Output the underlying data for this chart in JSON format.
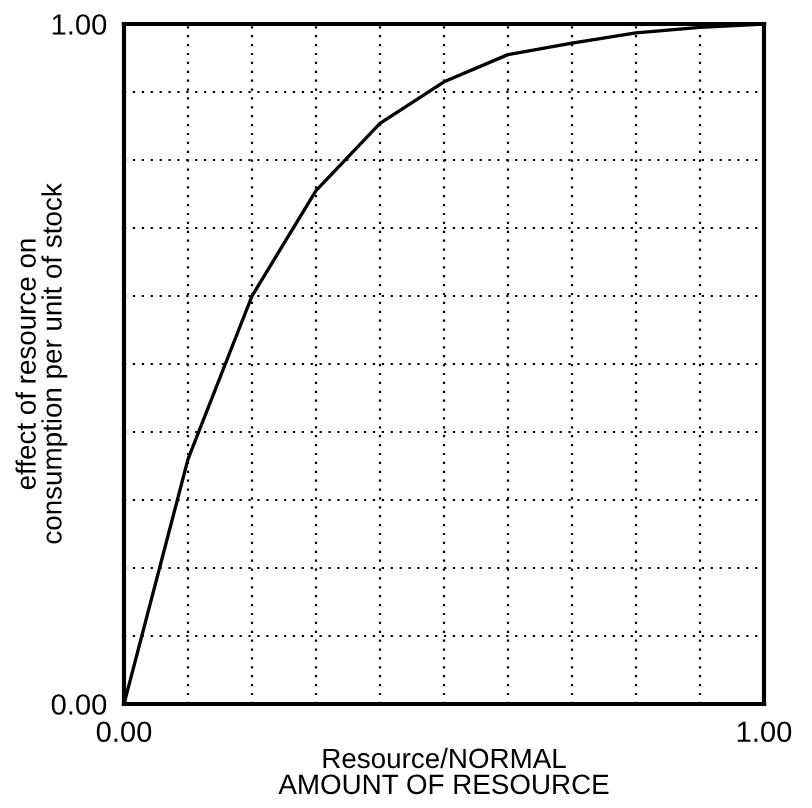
{
  "chart_data": {
    "type": "line",
    "xlabel": "Resource/NORMAL\nAMOUNT OF RESOURCE",
    "ylabel": "effect of resource on\nconsumption per unit of stock",
    "x": [
      0,
      0.1,
      0.2,
      0.3,
      0.4,
      0.5,
      0.6,
      0.7,
      0.8,
      0.9,
      1.0
    ],
    "series": [
      {
        "color": "#000000",
        "values": [
          0,
          0.36,
          0.6,
          0.755,
          0.854,
          0.915,
          0.955,
          0.972,
          0.987,
          0.995,
          1.0
        ]
      }
    ],
    "xlim": [
      0,
      1
    ],
    "ylim": [
      0,
      1
    ],
    "xticks": [
      {
        "value": 0,
        "label": "0.00"
      },
      {
        "value": 0.1,
        "label": null
      },
      {
        "value": 0.2,
        "label": null
      },
      {
        "value": 0.3,
        "label": null
      },
      {
        "value": 0.4,
        "label": null
      },
      {
        "value": 0.5,
        "label": null
      },
      {
        "value": 0.6,
        "label": null
      },
      {
        "value": 0.7,
        "label": null
      },
      {
        "value": 0.8,
        "label": null
      },
      {
        "value": 0.9,
        "label": null
      },
      {
        "value": 1,
        "label": "1.00"
      }
    ],
    "yticks": [
      {
        "value": 0,
        "label": "0.00"
      },
      {
        "value": 0.1,
        "label": null
      },
      {
        "value": 0.2,
        "label": null
      },
      {
        "value": 0.3,
        "label": null
      },
      {
        "value": 0.4,
        "label": null
      },
      {
        "value": 0.5,
        "label": null
      },
      {
        "value": 0.6,
        "label": null
      },
      {
        "value": 0.7,
        "label": null
      },
      {
        "value": 0.8,
        "label": null
      },
      {
        "value": 0.9,
        "label": null
      },
      {
        "value": 1,
        "label": "1.00"
      }
    ],
    "grid": true,
    "line_style": "solid",
    "marker": "none"
  }
}
